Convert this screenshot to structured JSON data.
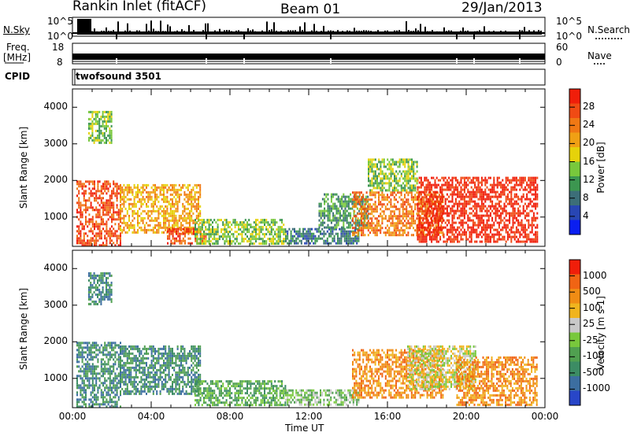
{
  "header": {
    "station": "Rankin Inlet (fitACF)",
    "beam": "Beam 01",
    "date": "29/Jan/2013"
  },
  "strips": {
    "nsky_label": "N.Sky",
    "nsky_ticks": [
      "10^5",
      "10^0"
    ],
    "nsearch_label": "N.Search",
    "nsearch_ticks": [
      "10^5",
      "10^0"
    ],
    "freq_label_top": "Freq.",
    "freq_label_unit": "[MHz]",
    "freq_ticks": [
      "18",
      "8"
    ],
    "nave_label": "Nave",
    "nave_ticks": [
      "60",
      "0"
    ],
    "cpid_label": "CPID",
    "cpid_value": "twofsound 3501"
  },
  "colorbars": {
    "power": {
      "label": "Power [dB]",
      "ticks": [
        "28",
        "24",
        "20",
        "16",
        "12",
        "8",
        "4"
      ],
      "colors": [
        "#0a1ef0",
        "#2846b4",
        "#3c6e78",
        "#3c9650",
        "#78c83c",
        "#e6d20a",
        "#f0a014",
        "#f07814",
        "#f04b14",
        "#f01e0a"
      ]
    },
    "velocity": {
      "label": "Velocity [m s-1]",
      "ticks": [
        "1000",
        "500",
        "100",
        "25",
        "-25",
        "-100",
        "-500",
        "-1000"
      ],
      "colors": [
        "#2846c8",
        "#3c6ea0",
        "#3c8c64",
        "#50a050",
        "#78c83c",
        "#c8c8c8",
        "#f0b41e",
        "#f08c14",
        "#f06414",
        "#f01e0a"
      ]
    }
  },
  "chart_data": [
    {
      "type": "heatmap",
      "panel": "power",
      "ylabel": "Slant Range [km]",
      "yticks": [
        "4000",
        "3000",
        "2000",
        "1000"
      ],
      "ylim": [
        200,
        4500
      ],
      "xlim": [
        0,
        24
      ],
      "regions": [
        {
          "t": [
            0.2,
            2.4
          ],
          "r": [
            250,
            2000
          ],
          "c": 8
        },
        {
          "t": [
            2.4,
            6.5
          ],
          "r": [
            600,
            1900
          ],
          "c": 6
        },
        {
          "t": [
            4.8,
            6.8
          ],
          "r": [
            250,
            700
          ],
          "c": 8
        },
        {
          "t": [
            6.2,
            10.8
          ],
          "r": [
            250,
            950
          ],
          "c": 4
        },
        {
          "t": [
            10.8,
            14.5
          ],
          "r": [
            250,
            700
          ],
          "c": 2
        },
        {
          "t": [
            12.5,
            15.0
          ],
          "r": [
            700,
            1650
          ],
          "c": 3
        },
        {
          "t": [
            14.2,
            18.8
          ],
          "r": [
            500,
            1700
          ],
          "c": 7
        },
        {
          "t": [
            17.5,
            23.6
          ],
          "r": [
            300,
            2100
          ],
          "c": 9
        },
        {
          "t": [
            15.0,
            17.5
          ],
          "r": [
            1700,
            2600
          ],
          "c": 4
        },
        {
          "t": [
            0.8,
            2.0
          ],
          "r": [
            3000,
            3900
          ],
          "c": 4
        }
      ]
    },
    {
      "type": "heatmap",
      "panel": "velocity",
      "ylabel": "Slant Range [km]",
      "yticks": [
        "4000",
        "3000",
        "2000",
        "1000"
      ],
      "ylim": [
        200,
        4500
      ],
      "xlim": [
        0,
        24
      ],
      "xlabel": "Time UT",
      "xticks": [
        "00:00",
        "04:00",
        "08:00",
        "12:00",
        "16:00",
        "20:00",
        "00:00"
      ],
      "regions": [
        {
          "t": [
            0.2,
            2.4
          ],
          "r": [
            250,
            2000
          ],
          "c": 2
        },
        {
          "t": [
            2.4,
            6.5
          ],
          "r": [
            600,
            1900
          ],
          "c": 2
        },
        {
          "t": [
            6.2,
            10.8
          ],
          "r": [
            300,
            950
          ],
          "c": 3
        },
        {
          "t": [
            10.8,
            14.5
          ],
          "r": [
            250,
            700
          ],
          "c": 4
        },
        {
          "t": [
            14.2,
            18.8
          ],
          "r": [
            500,
            1800
          ],
          "c": 7
        },
        {
          "t": [
            17.0,
            20.5
          ],
          "r": [
            700,
            1900
          ],
          "c": 5
        },
        {
          "t": [
            19.5,
            23.6
          ],
          "r": [
            300,
            1600
          ],
          "c": 7
        },
        {
          "t": [
            0.8,
            2.0
          ],
          "r": [
            3000,
            3900
          ],
          "c": 2
        }
      ]
    }
  ]
}
